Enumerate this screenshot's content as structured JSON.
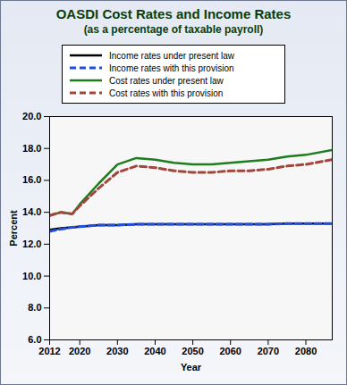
{
  "chart_data": {
    "type": "line",
    "title": "OASDI Cost Rates and Income Rates",
    "subtitle": "(as a percentage of taxable payroll)",
    "x_label": "Year",
    "y_label": "Percent",
    "x": [
      2012,
      2015,
      2018,
      2020,
      2025,
      2030,
      2035,
      2040,
      2045,
      2050,
      2055,
      2060,
      2065,
      2070,
      2075,
      2080,
      2087
    ],
    "series": [
      {
        "name": "Income rates under present law",
        "color": "#000000",
        "line_style": "solid",
        "values": [
          12.9,
          13.0,
          13.05,
          13.1,
          13.2,
          13.2,
          13.25,
          13.25,
          13.25,
          13.25,
          13.25,
          13.25,
          13.25,
          13.25,
          13.3,
          13.3,
          13.3
        ]
      },
      {
        "name": "Income rates with this provision",
        "color": "#1f4fe0",
        "line_style": "dashed",
        "values": [
          12.8,
          12.95,
          13.05,
          13.1,
          13.2,
          13.2,
          13.25,
          13.25,
          13.25,
          13.25,
          13.25,
          13.25,
          13.25,
          13.25,
          13.3,
          13.3,
          13.3
        ]
      },
      {
        "name": "Cost rates under present law",
        "color": "#1e7b1e",
        "line_style": "solid",
        "values": [
          13.8,
          14.0,
          13.9,
          14.5,
          15.8,
          17.0,
          17.4,
          17.3,
          17.1,
          17.0,
          17.0,
          17.1,
          17.2,
          17.3,
          17.5,
          17.6,
          17.9
        ]
      },
      {
        "name": "Cost rates with this provision",
        "color": "#a0463c",
        "line_style": "dashed",
        "values": [
          13.8,
          14.0,
          13.9,
          14.4,
          15.5,
          16.5,
          16.9,
          16.8,
          16.6,
          16.5,
          16.5,
          16.6,
          16.6,
          16.7,
          16.9,
          17.0,
          17.3
        ]
      }
    ],
    "xlim": [
      2012,
      2087
    ],
    "xticks": [
      2012,
      2020,
      2030,
      2040,
      2050,
      2060,
      2070,
      2080
    ],
    "ylim": [
      6,
      20
    ],
    "yticks": [
      {
        "value": 6,
        "label": "6.0"
      },
      {
        "value": 8,
        "label": "8.0"
      },
      {
        "value": 10,
        "label": "10.0"
      },
      {
        "value": 12,
        "label": "12.0"
      },
      {
        "value": 14,
        "label": "14.0"
      },
      {
        "value": 16,
        "label": "16.0"
      },
      {
        "value": 18,
        "label": "18.0"
      },
      {
        "value": 20,
        "label": "20.0"
      }
    ],
    "grid": false,
    "legend": "top"
  }
}
